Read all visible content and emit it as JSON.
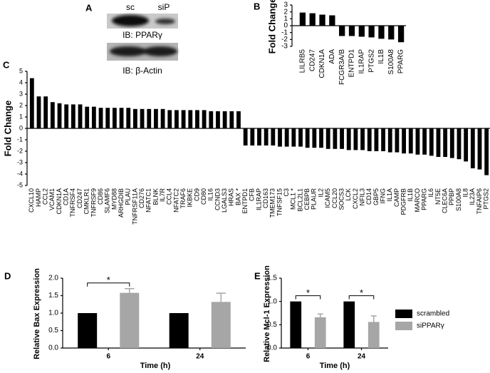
{
  "blot": {
    "panel": "A",
    "lanes": [
      "sc",
      "siP"
    ],
    "labels": [
      "IB: PPARγ",
      "IB: β-Actin"
    ]
  },
  "chart_data": [
    {
      "type": "bar",
      "panel": "B",
      "ylabel": "Fold Change",
      "categories": [
        "LILRB5",
        "CD247",
        "CDKN1A",
        "ADA",
        "FCGR3A/B",
        "ENTPD1",
        "IL1RAP",
        "PTGS2",
        "IL1B",
        "S100A8",
        "PPARG"
      ],
      "values": [
        1.9,
        1.8,
        1.6,
        1.5,
        -1.5,
        -1.5,
        -1.6,
        -1.7,
        -1.9,
        -2.0,
        -2.4
      ],
      "color": "#000000",
      "ylim": [
        -3,
        3
      ],
      "yticks": [
        -3,
        -2,
        -1,
        0,
        1,
        2,
        3
      ]
    },
    {
      "type": "bar",
      "panel": "C",
      "ylabel": "Fold Change",
      "categories": [
        "CXCL10",
        "HAMP",
        "CCL2",
        "VCAM1",
        "CDKN1A",
        "CD1A",
        "TNFRSF4",
        "CD247",
        "CMKLR1",
        "TNFRSF9",
        "CD86",
        "SLAMF6",
        "MYD88",
        "ARHGDIB",
        "PLAU",
        "TNFRSF11A",
        "CD276",
        "NFATC1",
        "BLNK",
        "IL7R",
        "CCL4",
        "NFATC2",
        "TRAF6",
        "IKBKE",
        "CD9",
        "CD80",
        "IL16",
        "CCND3",
        "LGALS3",
        "HRAS",
        "BAX *",
        "ENTPD1",
        "CFB",
        "IL1RAP",
        "CD163",
        "TMEM173",
        "TNFSF15",
        "C3",
        "MCL1 *",
        "BCL2L1",
        "CEBPB",
        "PLAUR",
        "IL2",
        "ICAM5",
        "CCL20",
        "SOCS3",
        "LCK",
        "CXCL2",
        "NFIL3",
        "CD14",
        "GBP5",
        "IFNG",
        "IL1A",
        "CAMP",
        "PDGFRB",
        "IL1B",
        "MARCO",
        "PPARG",
        "IL6",
        "NT5E",
        "CLEC6A",
        "PPBP",
        "S100A8",
        "IL8",
        "IL23A",
        "TNFAIP6",
        "PTGS2"
      ],
      "values": [
        4.4,
        2.8,
        2.8,
        2.3,
        2.2,
        2.1,
        2.1,
        2.1,
        1.9,
        1.9,
        1.8,
        1.8,
        1.8,
        1.8,
        1.8,
        1.7,
        1.7,
        1.7,
        1.7,
        1.7,
        1.6,
        1.6,
        1.6,
        1.6,
        1.6,
        1.6,
        1.5,
        1.5,
        1.5,
        1.5,
        1.5,
        -1.5,
        -1.5,
        -1.5,
        -1.5,
        -1.5,
        -1.6,
        -1.6,
        -1.6,
        -1.6,
        -1.7,
        -1.7,
        -1.7,
        -1.8,
        -1.8,
        -1.8,
        -1.9,
        -1.9,
        -1.9,
        -2.0,
        -2.0,
        -2.0,
        -2.1,
        -2.1,
        -2.2,
        -2.2,
        -2.3,
        -2.3,
        -2.4,
        -2.5,
        -2.5,
        -2.6,
        -2.7,
        -2.9,
        -3.5,
        -3.6,
        -4.1
      ],
      "color": "#000000",
      "ylim": [
        -5,
        5
      ],
      "yticks": [
        -5,
        -4,
        -3,
        -2,
        -1,
        0,
        1,
        2,
        3,
        4,
        5
      ]
    },
    {
      "type": "grouped_bar",
      "panel": "D",
      "xlabel": "Time (h)",
      "ylabel": "Relative Bax Expression",
      "categories": [
        "6",
        "24"
      ],
      "series": [
        {
          "color": "#000000",
          "values": [
            1.0,
            1.0
          ]
        },
        {
          "color": "#a6a6a6",
          "values": [
            1.58,
            1.32
          ],
          "errors": [
            0.12,
            0.25
          ]
        }
      ],
      "ylim": [
        0,
        2
      ],
      "yticks": [
        {
          "value": 0,
          "label": "0.0"
        },
        0.5,
        {
          "value": 1,
          "label": "1.0"
        },
        1.5,
        {
          "value": 2,
          "label": "2.0"
        }
      ],
      "annotations": [
        "*"
      ]
    },
    {
      "type": "grouped_bar",
      "panel": "E",
      "xlabel": "Time (h)",
      "ylabel": "Relative Mcl-1 Expression",
      "categories": [
        "6",
        "24"
      ],
      "series": [
        {
          "name": "scrambled",
          "color": "#000000",
          "values": [
            1.0,
            1.0
          ]
        },
        {
          "name": "siPPARγ",
          "color": "#a6a6a6",
          "values": [
            0.66,
            0.56
          ],
          "errors": [
            0.07,
            0.13
          ]
        }
      ],
      "ylim": [
        0,
        1.5
      ],
      "yticks": [
        {
          "value": 0,
          "label": "0.0"
        },
        0.5,
        {
          "value": 1,
          "label": "1.0"
        },
        1.5
      ],
      "annotations": [
        "*",
        "*"
      ]
    }
  ]
}
